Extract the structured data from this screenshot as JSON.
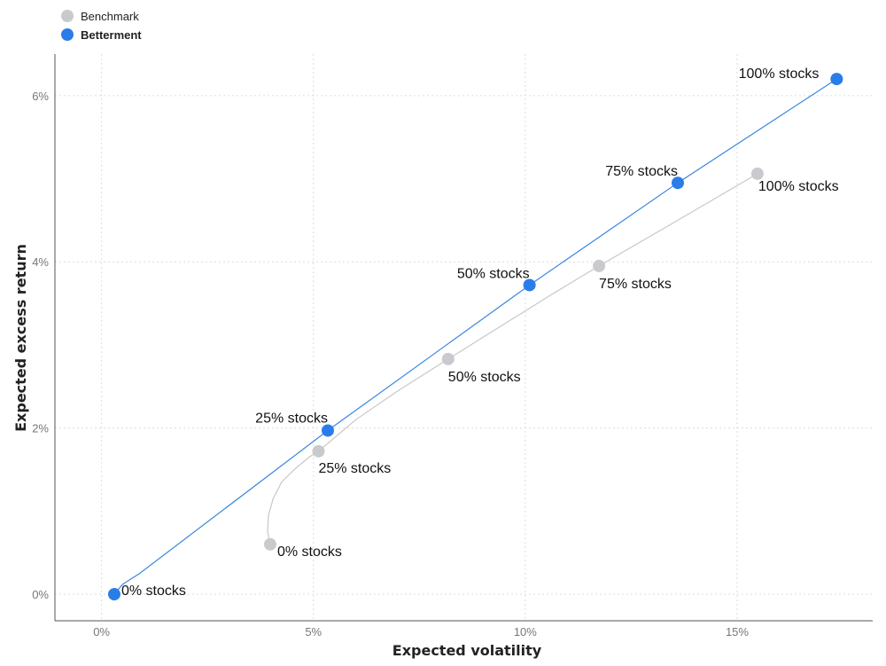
{
  "chart_data": {
    "type": "scatter",
    "title": "",
    "xlabel": "Expected volatility",
    "ylabel": "Expected excess return",
    "xlim": [
      -0.011,
      0.182
    ],
    "ylim": [
      -0.0032,
      0.065
    ],
    "x_ticks": [
      {
        "value": 0,
        "label": "0%"
      },
      {
        "value": 0.05,
        "label": "5%"
      },
      {
        "value": 0.1,
        "label": "10%"
      },
      {
        "value": 0.15,
        "label": "15%"
      }
    ],
    "y_ticks": [
      {
        "value": 0,
        "label": "0%"
      },
      {
        "value": 0.02,
        "label": "2%"
      },
      {
        "value": 0.04,
        "label": "4%"
      },
      {
        "value": 0.06,
        "label": "6%"
      }
    ],
    "grid": true,
    "legend_position": "top-left",
    "series": [
      {
        "name": "Benchmark",
        "color": "#c8cacd",
        "line_color": "#c8c8c8",
        "points": [
          {
            "x": 0.0398,
            "y": 0.006,
            "label": "0% stocks"
          },
          {
            "x": 0.0512,
            "y": 0.0172,
            "label": "25% stocks"
          },
          {
            "x": 0.0818,
            "y": 0.0283,
            "label": "50% stocks"
          },
          {
            "x": 0.1174,
            "y": 0.0395,
            "label": "75% stocks"
          },
          {
            "x": 0.1548,
            "y": 0.0506,
            "label": "100% stocks"
          }
        ],
        "curve": [
          [
            0.0398,
            0.006
          ],
          [
            0.0392,
            0.0075
          ],
          [
            0.0394,
            0.0095
          ],
          [
            0.0405,
            0.0115
          ],
          [
            0.0425,
            0.0135
          ],
          [
            0.0455,
            0.015
          ],
          [
            0.049,
            0.0165
          ],
          [
            0.0512,
            0.0172
          ],
          [
            0.06,
            0.021
          ],
          [
            0.07,
            0.0245
          ],
          [
            0.0818,
            0.0283
          ],
          [
            0.095,
            0.0325
          ],
          [
            0.106,
            0.036
          ],
          [
            0.1174,
            0.0395
          ],
          [
            0.136,
            0.045
          ],
          [
            0.1548,
            0.0506
          ]
        ]
      },
      {
        "name": "Betterment",
        "color": "#2a7de9",
        "line_color": "#3a86e0",
        "points": [
          {
            "x": 0.003,
            "y": 0.0,
            "label": "0% stocks"
          },
          {
            "x": 0.0534,
            "y": 0.0197,
            "label": "25% stocks"
          },
          {
            "x": 0.101,
            "y": 0.0372,
            "label": "50% stocks"
          },
          {
            "x": 0.136,
            "y": 0.0495,
            "label": "75% stocks"
          },
          {
            "x": 0.1735,
            "y": 0.062,
            "label": "100% stocks"
          }
        ],
        "curve": [
          [
            0.003,
            0.0
          ],
          [
            0.005,
            0.0012
          ],
          [
            0.009,
            0.0025
          ],
          [
            0.0534,
            0.0197
          ],
          [
            0.101,
            0.0372
          ],
          [
            0.136,
            0.0495
          ],
          [
            0.1735,
            0.062
          ]
        ]
      }
    ]
  }
}
